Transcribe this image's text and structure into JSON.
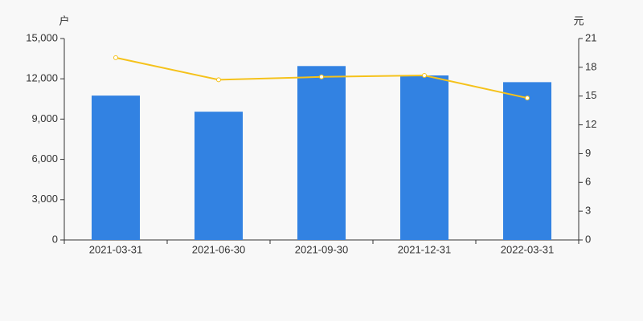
{
  "chart_data": {
    "type": "bar",
    "y_unit": "户",
    "y2_unit": "元",
    "categories": [
      "2021-03-31",
      "2021-06-30",
      "2021-09-30",
      "2021-12-31",
      "2022-03-31"
    ],
    "series": [
      {
        "type": "bar",
        "color": "#3282e2",
        "values": [
          10750,
          9550,
          12950,
          12250,
          11750
        ]
      },
      {
        "type": "line",
        "axis": "y2",
        "color": "#f5c21b",
        "values": [
          19.0,
          16.7,
          17.0,
          17.15,
          14.8
        ]
      }
    ],
    "ylim": [
      0,
      15000
    ],
    "yticks": [
      0,
      {
        "value": 3000,
        "label": "3,000"
      },
      {
        "value": 6000,
        "label": "6,000"
      },
      {
        "value": 9000,
        "label": "9,000"
      },
      {
        "value": 12000,
        "label": "12,000"
      },
      {
        "value": 15000,
        "label": "15,000"
      }
    ],
    "y2lim": [
      0,
      21
    ],
    "y2ticks": [
      0,
      3,
      6,
      9,
      12,
      15,
      18,
      21
    ]
  }
}
